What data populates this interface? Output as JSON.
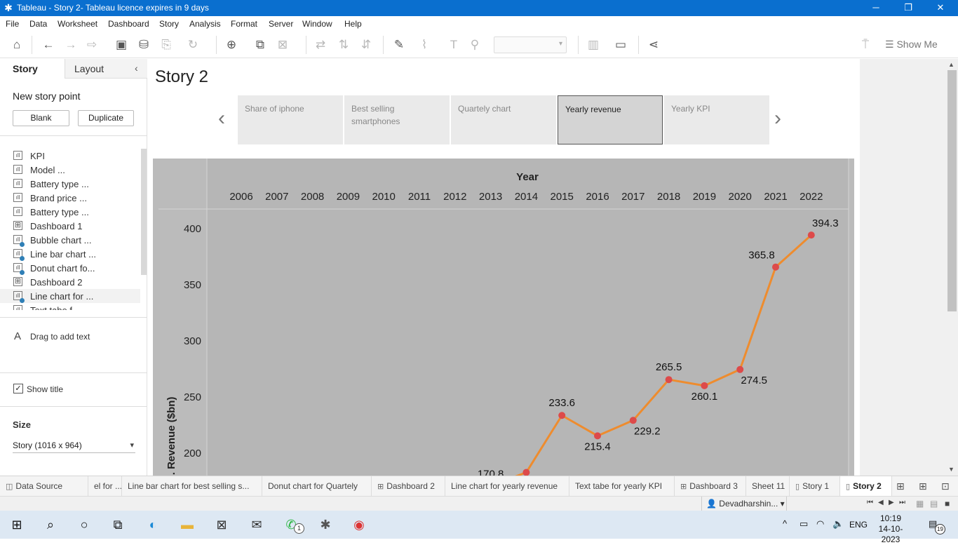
{
  "window": {
    "title": "Tableau - Story 2- Tableau licence expires in 9 days",
    "minimize": "─",
    "restore": "❐",
    "close": "✕"
  },
  "menu": [
    "File",
    "Data",
    "Worksheet",
    "Dashboard",
    "Story",
    "Analysis",
    "Format",
    "Server",
    "Window",
    "Help"
  ],
  "toolbar": {
    "show_me": "Show Me"
  },
  "left_pane": {
    "tabs": {
      "story": "Story",
      "layout": "Layout"
    },
    "new_story_point": "New story point",
    "blank": "Blank",
    "duplicate": "Duplicate",
    "sheets": [
      {
        "name": "KPI",
        "kind": "sheet",
        "badge": false
      },
      {
        "name": "Model ...",
        "kind": "sheet",
        "badge": false
      },
      {
        "name": "Battery type ...",
        "kind": "sheet",
        "badge": false
      },
      {
        "name": "Brand price ...",
        "kind": "sheet",
        "badge": false
      },
      {
        "name": "Battery type ...",
        "kind": "sheet",
        "badge": false
      },
      {
        "name": "Dashboard 1",
        "kind": "dashboard",
        "badge": false
      },
      {
        "name": "Bubble chart ...",
        "kind": "sheet",
        "badge": true
      },
      {
        "name": "Line bar chart ...",
        "kind": "sheet",
        "badge": true
      },
      {
        "name": "Donut chart fo...",
        "kind": "sheet",
        "badge": true
      },
      {
        "name": "Dashboard 2",
        "kind": "dashboard",
        "badge": false
      },
      {
        "name": "Line chart for ...",
        "kind": "sheet",
        "badge": true,
        "active": true
      },
      {
        "name": "Text tabe f...",
        "kind": "sheet",
        "badge": false
      }
    ],
    "drag_text": "Drag to add text",
    "show_title": "Show title",
    "size_title": "Size",
    "size_value": "Story (1016 x 964)"
  },
  "story": {
    "title": "Story 2",
    "points": [
      {
        "label": "Share of iphone",
        "active": false
      },
      {
        "label": "Best selling smartphones",
        "active": false
      },
      {
        "label": "Quartely chart",
        "active": false
      },
      {
        "label": "Yearly revenue",
        "active": true
      },
      {
        "label": "Yearly KPI",
        "active": false
      }
    ]
  },
  "chart_data": {
    "type": "line",
    "xlabel": "Year",
    "ylabel": "g. Revenue ($bn)",
    "x_ticks": [
      "2006",
      "2007",
      "2008",
      "2009",
      "2010",
      "2011",
      "2012",
      "2013",
      "2014",
      "2015",
      "2016",
      "2017",
      "2018",
      "2019",
      "2020",
      "2021",
      "2022"
    ],
    "y_ticks": [
      200,
      250,
      300,
      350,
      400
    ],
    "visible_y_range": [
      186,
      418
    ],
    "series": [
      {
        "color": "#ee8c2e",
        "marker_color": "#dd4a4a",
        "points": [
          {
            "x": "2013",
            "y": 170.8,
            "label": "170.8"
          },
          {
            "x": "2014",
            "y": 182.8,
            "label": ""
          },
          {
            "x": "2015",
            "y": 233.6,
            "label": "233.6"
          },
          {
            "x": "2016",
            "y": 215.4,
            "label": "215.4"
          },
          {
            "x": "2017",
            "y": 229.2,
            "label": "229.2"
          },
          {
            "x": "2018",
            "y": 265.5,
            "label": "265.5"
          },
          {
            "x": "2019",
            "y": 260.1,
            "label": "260.1"
          },
          {
            "x": "2020",
            "y": 274.5,
            "label": "274.5"
          },
          {
            "x": "2021",
            "y": 365.8,
            "label": "365.8"
          },
          {
            "x": "2022",
            "y": 394.3,
            "label": "394.3"
          }
        ]
      }
    ]
  },
  "bottom_tabs": [
    {
      "label": "Data Source",
      "icon": "◫"
    },
    {
      "label": "el for ...",
      "icon": ""
    },
    {
      "label": "Line bar chart for best selling s...",
      "icon": ""
    },
    {
      "label": "Donut chart for Quartely",
      "icon": ""
    },
    {
      "label": "Dashboard 2",
      "icon": "⊞"
    },
    {
      "label": "Line chart for yearly revenue",
      "icon": ""
    },
    {
      "label": "Text tabe for yearly KPI",
      "icon": ""
    },
    {
      "label": "Dashboard 3",
      "icon": "⊞"
    },
    {
      "label": "Sheet 11",
      "icon": ""
    },
    {
      "label": "Story 1",
      "icon": "▯"
    },
    {
      "label": "Story 2",
      "icon": "▯",
      "active": true
    }
  ],
  "status": {
    "user": "Devadharshin..."
  },
  "taskbar": {
    "time": "10:19",
    "date": "14-10-2023",
    "lang": "ENG",
    "whatsapp_badge": "1",
    "notification_count": "19"
  }
}
